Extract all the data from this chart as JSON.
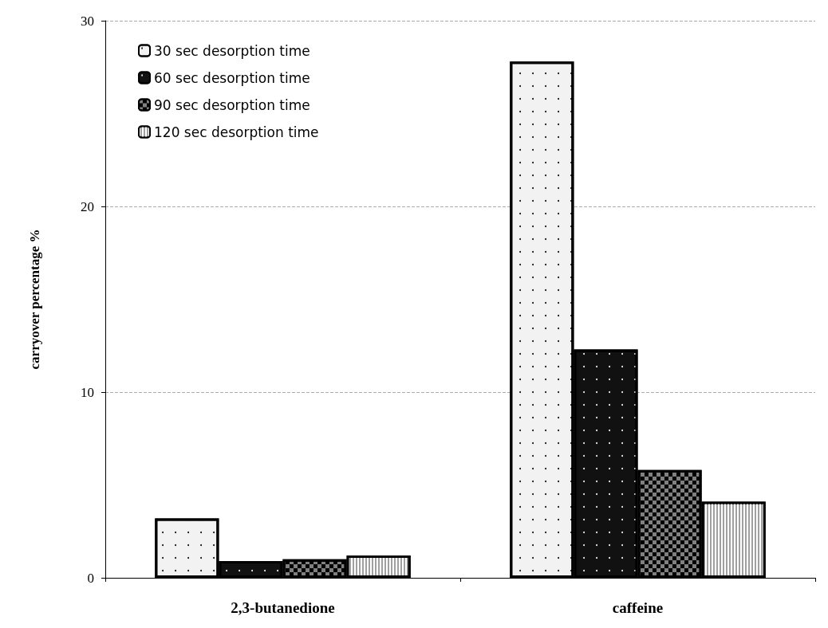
{
  "chart_data": {
    "type": "bar",
    "ylabel": "carryover percentage %",
    "categories": [
      "2,3-butanedione",
      "caffeine"
    ],
    "series": [
      {
        "name": "30 sec desorption time",
        "color": "#f2f2f2",
        "values": [
          3.2,
          27.8
        ]
      },
      {
        "name": "60 sec desorption time",
        "color": "#111111",
        "values": [
          0.9,
          12.3
        ]
      },
      {
        "name": "90 sec desorption time",
        "color": "#808080",
        "values": [
          1.0,
          5.8
        ]
      },
      {
        "name": "120 sec desorption time",
        "color": "#a0a0a0",
        "values": [
          1.2,
          4.1
        ]
      }
    ],
    "ylim": [
      0,
      30
    ],
    "yticks": [
      0,
      10,
      20,
      30
    ],
    "grid": "y",
    "legend": "top left"
  }
}
